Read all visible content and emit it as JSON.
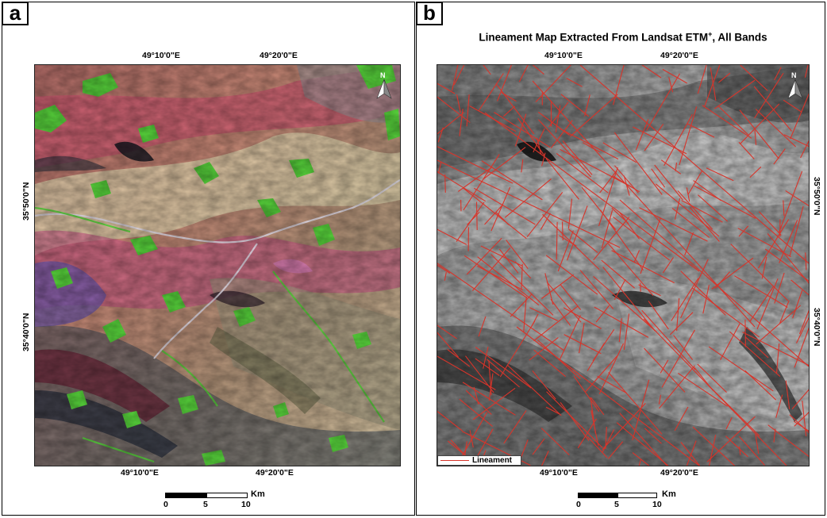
{
  "panel_a": {
    "letter": "a",
    "top_ticks": [
      "49°10'0\"E",
      "49°20'0\"E"
    ],
    "bottom_ticks": [
      "49°10'0\"E",
      "49°20'0\"E"
    ],
    "left_ticks": [
      "35°50'0\"N",
      "35°40'0\"N"
    ],
    "north_label": "N",
    "scale": {
      "labels": [
        "0",
        "5",
        "10"
      ],
      "unit": "Km"
    },
    "colors": {
      "green": "#58d53c",
      "pink": "#d35a8f",
      "red_brown": "#a84a3a",
      "pale": "#e8dcc0",
      "violet": "#7a62b4"
    }
  },
  "panel_b": {
    "letter": "b",
    "title": "Lineament Map Extracted From Landsat ETM",
    "title_sup": "+",
    "title_suffix": ", All Bands",
    "top_ticks": [
      "49°10'0\"E",
      "49°20'0\"E"
    ],
    "bottom_ticks": [
      "49°10'0\"E",
      "49°20'0\"E"
    ],
    "right_ticks": [
      "35°50'0\"N",
      "35°40'0\"N"
    ],
    "north_label": "N",
    "legend_label": "Lineament",
    "scale": {
      "labels": [
        "0",
        "5",
        "10"
      ],
      "unit": "Km"
    },
    "colors": {
      "lineament": "#d8342a"
    }
  }
}
